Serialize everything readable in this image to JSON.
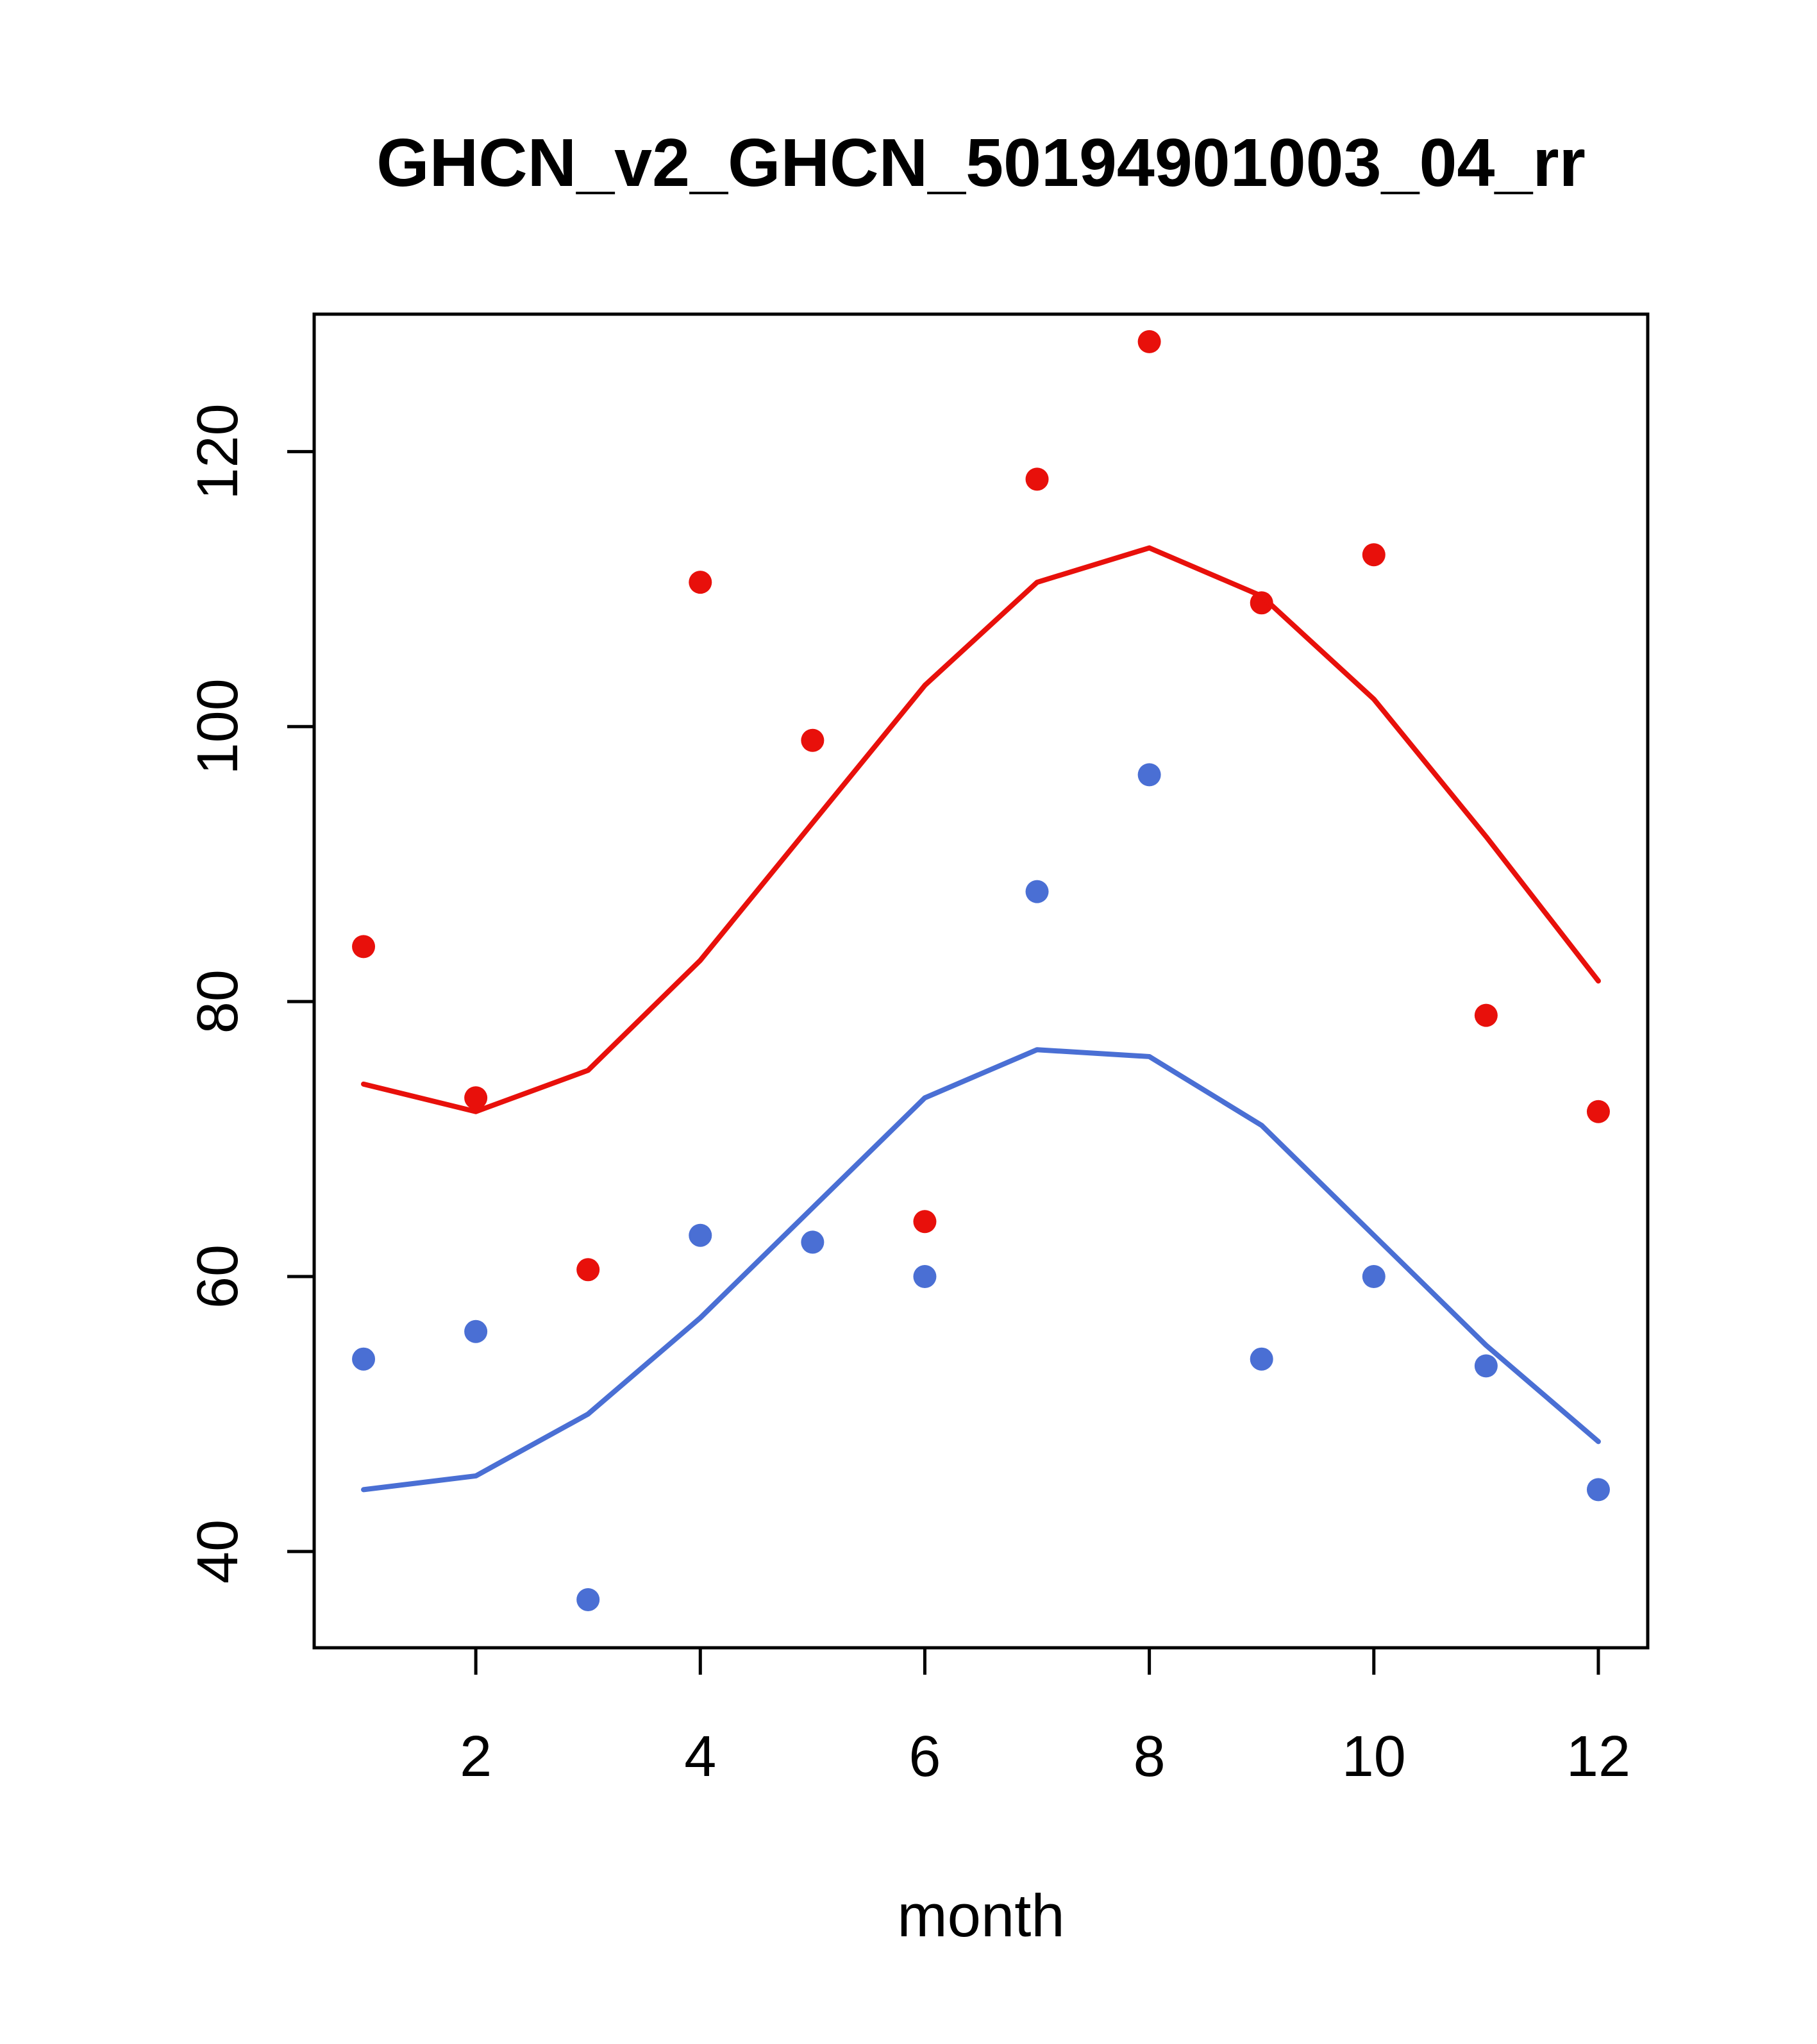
{
  "chart_data": {
    "type": "scatter",
    "title": "GHCN_v2_GHCN_50194901003_04_rr",
    "xlabel": "month",
    "ylabel": "",
    "x": [
      1,
      2,
      3,
      4,
      5,
      6,
      7,
      8,
      9,
      10,
      11,
      12
    ],
    "xticks": [
      2,
      4,
      6,
      8,
      10,
      12
    ],
    "yticks": [
      40,
      60,
      80,
      100,
      120
    ],
    "xlim": [
      0.56,
      12.44
    ],
    "ylim": [
      33,
      130
    ],
    "grid": false,
    "legend": "none",
    "colors": {
      "red_series": "#e8100b",
      "blue_series": "#4a6fd4",
      "axis": "#000000",
      "background": "#ffffff"
    },
    "series": [
      {
        "name": "red-points",
        "style": "points",
        "color_key": "red_series",
        "values": [
          84,
          73,
          60.5,
          110.5,
          99,
          64,
          118,
          128,
          109,
          112.5,
          79,
          72
        ]
      },
      {
        "name": "red-line",
        "style": "line",
        "color_key": "red_series",
        "values": [
          74,
          72,
          75,
          83,
          93,
          103,
          110.5,
          113,
          109.5,
          102,
          92,
          81.5
        ]
      },
      {
        "name": "blue-points",
        "style": "points",
        "color_key": "blue_series",
        "values": [
          54,
          56,
          36.5,
          63,
          62.5,
          60,
          88,
          96.5,
          54,
          60,
          53.5,
          44.5
        ]
      },
      {
        "name": "blue-line",
        "style": "line",
        "color_key": "blue_series",
        "values": [
          44.5,
          45.5,
          50,
          57,
          65,
          73,
          76.5,
          76,
          71,
          63,
          55,
          48
        ]
      }
    ]
  }
}
